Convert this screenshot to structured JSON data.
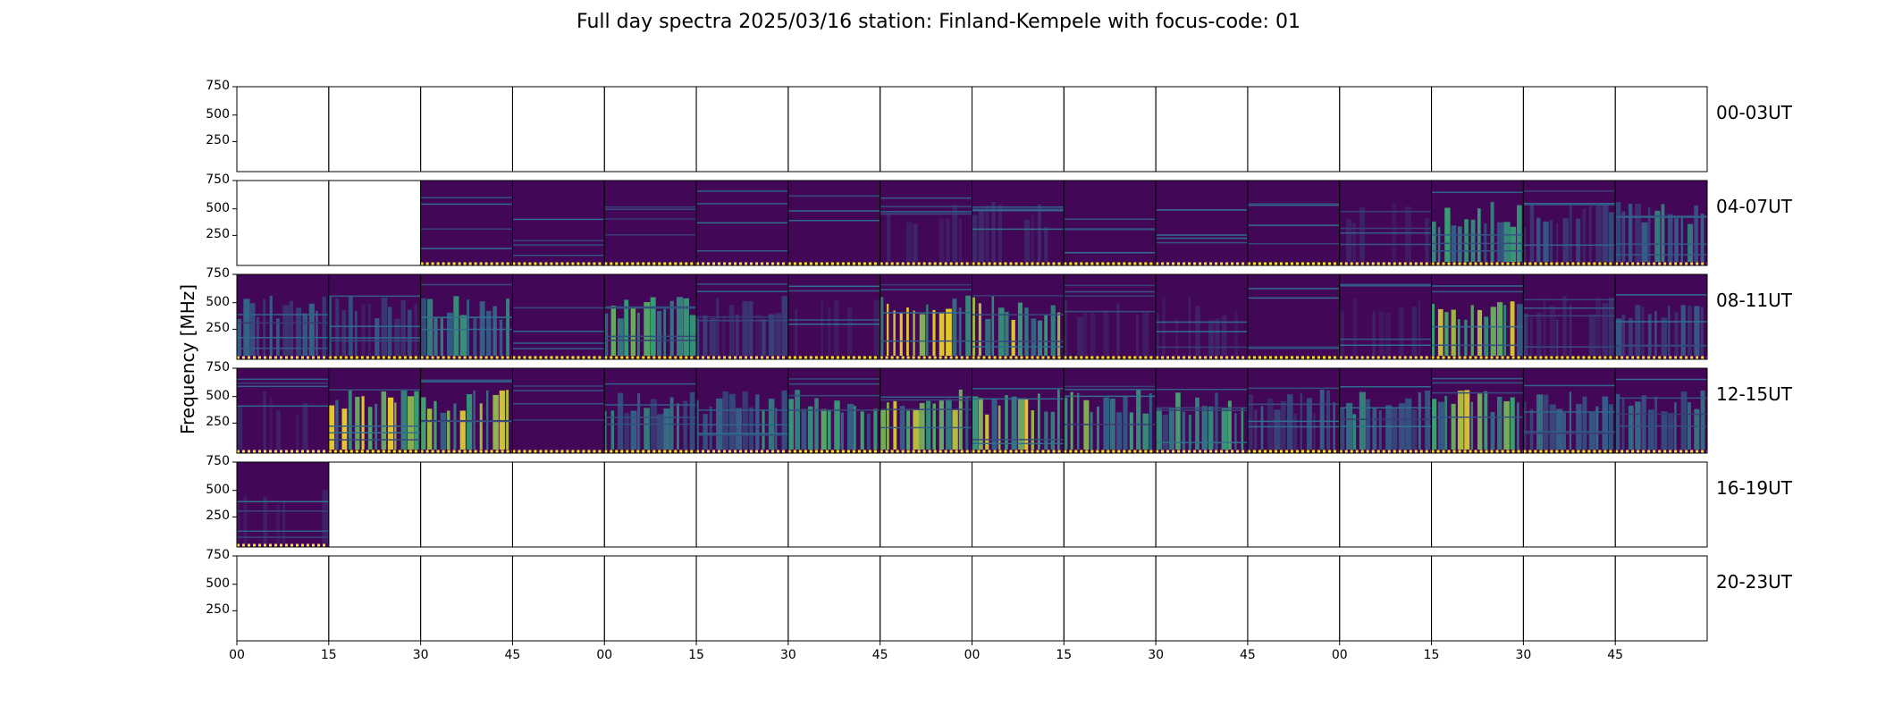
{
  "chart_data": {
    "type": "heatmap",
    "title": "Full day spectra 2025/03/16 station: Finland-Kempele with focus-code: 01",
    "ylabel": "Frequency [MHz]",
    "y_ticks": [
      "750",
      "500",
      "250"
    ],
    "x_ticks": [
      "00",
      "15",
      "30",
      "45",
      "00",
      "15",
      "30",
      "45",
      "00",
      "15",
      "30",
      "45",
      "00",
      "15",
      "30",
      "45"
    ],
    "colormap": [
      "#440154",
      "#31688e",
      "#35b779",
      "#fde725"
    ],
    "rows": [
      {
        "label": "00-03UT",
        "panels": [
          0,
          0,
          0,
          0,
          0,
          0,
          0,
          0,
          0,
          0,
          0,
          0,
          0,
          0,
          0,
          0
        ],
        "intensity": [
          0,
          0,
          0,
          0,
          0,
          0,
          0,
          0,
          0,
          0,
          0,
          0,
          0,
          0,
          0,
          0
        ]
      },
      {
        "label": "04-07UT",
        "panels": [
          0,
          0,
          1,
          1,
          1,
          1,
          1,
          1,
          1,
          1,
          1,
          1,
          1,
          1,
          1,
          1
        ],
        "intensity": [
          0,
          0,
          0.05,
          0.05,
          0.05,
          0.05,
          0.05,
          0.1,
          0.12,
          0.05,
          0.05,
          0.05,
          0.1,
          0.6,
          0.25,
          0.4
        ]
      },
      {
        "label": "08-11UT",
        "panels": [
          1,
          1,
          1,
          1,
          1,
          1,
          1,
          1,
          1,
          1,
          1,
          1,
          1,
          1,
          1,
          1
        ],
        "intensity": [
          0.3,
          0.25,
          0.5,
          0.05,
          0.6,
          0.2,
          0.1,
          0.95,
          0.85,
          0.1,
          0.1,
          0.05,
          0.1,
          0.8,
          0.15,
          0.25
        ]
      },
      {
        "label": "12-15UT",
        "panels": [
          1,
          1,
          1,
          1,
          1,
          1,
          1,
          1,
          1,
          1,
          1,
          1,
          1,
          1,
          1,
          1
        ],
        "intensity": [
          0.1,
          0.85,
          0.8,
          0.05,
          0.4,
          0.45,
          0.6,
          0.75,
          0.85,
          0.7,
          0.55,
          0.3,
          0.45,
          0.75,
          0.35,
          0.35
        ]
      },
      {
        "label": "16-19UT",
        "panels": [
          1,
          0,
          0,
          0,
          0,
          0,
          0,
          0,
          0,
          0,
          0,
          0,
          0,
          0,
          0,
          0
        ],
        "intensity": [
          0.1,
          0,
          0,
          0,
          0,
          0,
          0,
          0,
          0,
          0,
          0,
          0,
          0,
          0,
          0,
          0
        ]
      },
      {
        "label": "20-23UT",
        "panels": [
          0,
          0,
          0,
          0,
          0,
          0,
          0,
          0,
          0,
          0,
          0,
          0,
          0,
          0,
          0,
          0
        ],
        "intensity": [
          0,
          0,
          0,
          0,
          0,
          0,
          0,
          0,
          0,
          0,
          0,
          0,
          0,
          0,
          0,
          0
        ]
      }
    ],
    "grid": false
  }
}
